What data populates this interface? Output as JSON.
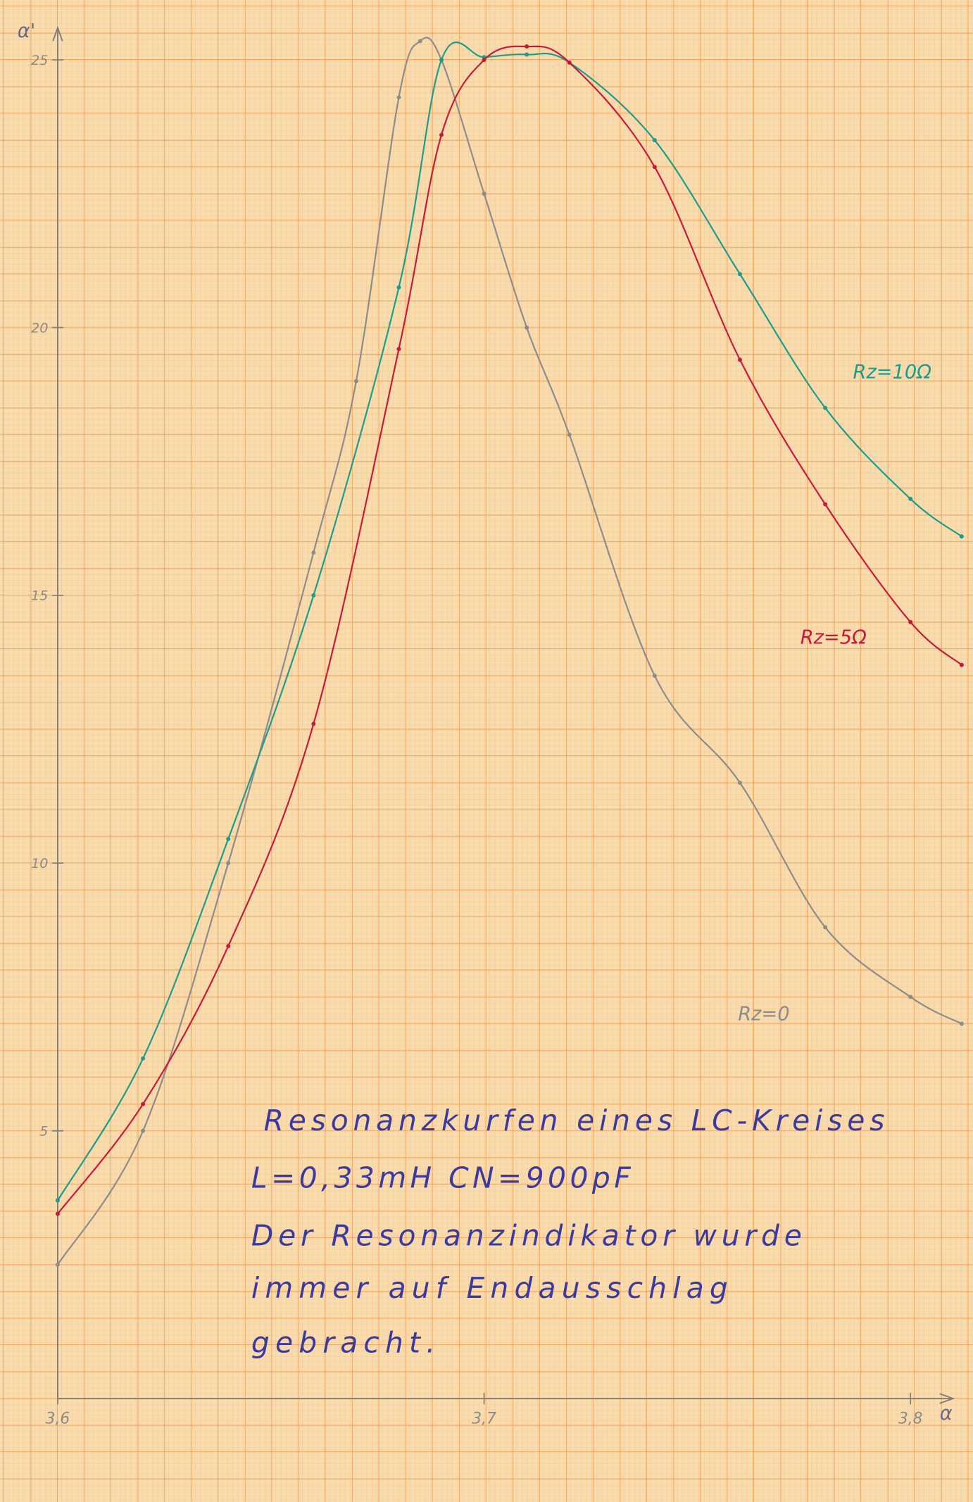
{
  "chart_data": {
    "type": "line",
    "x_label": "α",
    "y_label": "α'",
    "xlim": [
      3.6,
      3.81
    ],
    "ylim": [
      0,
      25.6
    ],
    "xticks": [
      {
        "value": 3.6,
        "label": "3,6"
      },
      {
        "value": 3.7,
        "label": "3,7"
      },
      {
        "value": 3.8,
        "label": "3,8"
      }
    ],
    "yticks": [
      5,
      10,
      15,
      20,
      25
    ],
    "series": [
      {
        "name": "Rz=0",
        "color": "#8c8c8c",
        "x": [
          3.6,
          3.62,
          3.64,
          3.66,
          3.67,
          3.68,
          3.685,
          3.69,
          3.7,
          3.71,
          3.72,
          3.74,
          3.76,
          3.78,
          3.8,
          3.812
        ],
        "values": [
          2.5,
          5.0,
          10.0,
          15.8,
          19.0,
          24.3,
          25.35,
          25.0,
          22.5,
          20.0,
          18.0,
          13.5,
          11.5,
          8.8,
          7.5,
          7.0
        ]
      },
      {
        "name": "Rz=10Ω",
        "color": "#1b9c8c",
        "x": [
          3.6,
          3.62,
          3.64,
          3.66,
          3.68,
          3.69,
          3.7,
          3.71,
          3.72,
          3.74,
          3.76,
          3.78,
          3.8,
          3.812
        ],
        "values": [
          3.7,
          6.35,
          10.45,
          15.0,
          20.75,
          25.0,
          25.05,
          25.1,
          24.95,
          23.5,
          21.0,
          18.5,
          16.8,
          16.1
        ]
      },
      {
        "name": "Rz=5Ω",
        "color": "#c8183c",
        "x": [
          3.6,
          3.62,
          3.64,
          3.66,
          3.68,
          3.69,
          3.7,
          3.71,
          3.72,
          3.74,
          3.76,
          3.78,
          3.8,
          3.812
        ],
        "values": [
          3.45,
          5.5,
          8.45,
          12.6,
          19.6,
          23.6,
          25.0,
          25.25,
          24.95,
          23.0,
          19.4,
          16.7,
          14.5,
          13.7
        ]
      }
    ],
    "annotation": [
      "Resonanzkurfen eines LC-Kreises",
      "L=0,33mH    CN=900pF",
      "Der Resonanzindikator wurde",
      "immer auf Endausschlag",
      "gebracht."
    ]
  }
}
